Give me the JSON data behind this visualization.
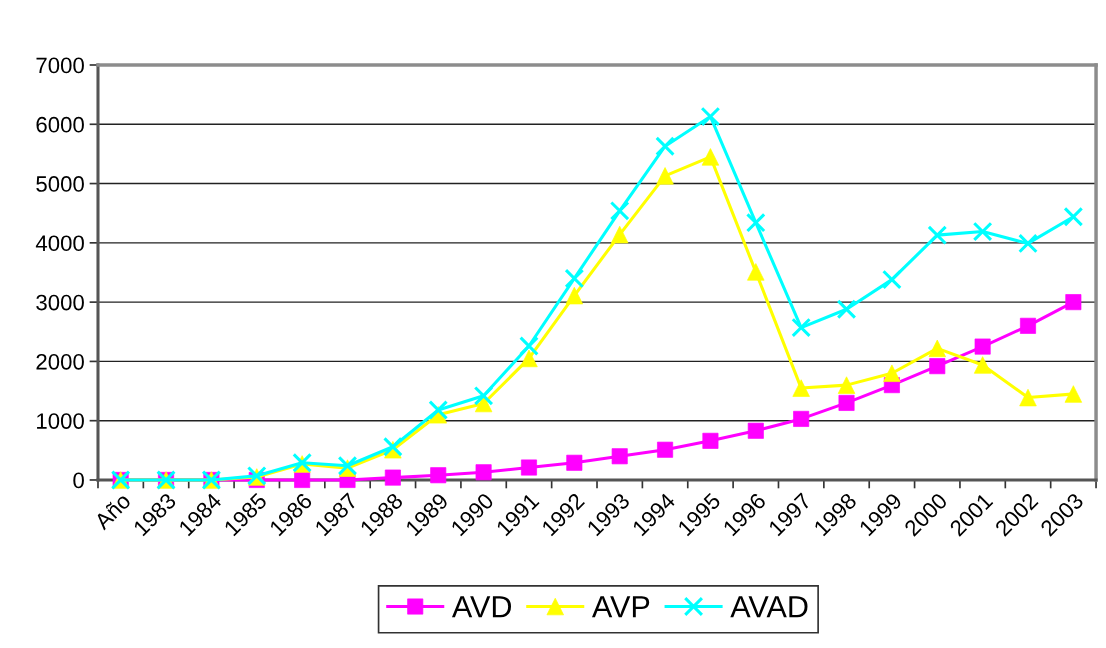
{
  "chart_data": {
    "type": "line",
    "categories": [
      "Año",
      "1983",
      "1984",
      "1985",
      "1986",
      "1987",
      "1988",
      "1989",
      "1990",
      "1991",
      "1992",
      "1993",
      "1994",
      "1995",
      "1996",
      "1997",
      "1998",
      "1999",
      "2000",
      "2001",
      "2002",
      "2003"
    ],
    "series": [
      {
        "name": "AVD",
        "color": "#ff00ff",
        "marker": "square",
        "values": [
          0,
          0,
          0,
          0,
          0,
          0,
          40,
          80,
          130,
          210,
          290,
          400,
          510,
          660,
          830,
          1030,
          1300,
          1600,
          1920,
          2250,
          2600,
          3000
        ]
      },
      {
        "name": "AVP",
        "color": "#ffff00",
        "marker": "triangle",
        "values": [
          0,
          0,
          0,
          50,
          270,
          200,
          510,
          1100,
          1290,
          2050,
          3110,
          4140,
          5130,
          5450,
          3510,
          1550,
          1600,
          1800,
          2220,
          1940,
          1390,
          1450
        ]
      },
      {
        "name": "AVAD",
        "color": "#00ffff",
        "marker": "cross",
        "values": [
          0,
          0,
          0,
          70,
          290,
          240,
          560,
          1180,
          1420,
          2260,
          3400,
          4540,
          5630,
          6130,
          4340,
          2570,
          2880,
          3380,
          4130,
          4190,
          3990,
          4440
        ]
      }
    ],
    "ylim": [
      0,
      7000
    ],
    "yticks": [
      0,
      1000,
      2000,
      3000,
      4000,
      5000,
      6000,
      7000
    ],
    "grid": "y",
    "legend": "bottom",
    "line_style": "solid"
  }
}
